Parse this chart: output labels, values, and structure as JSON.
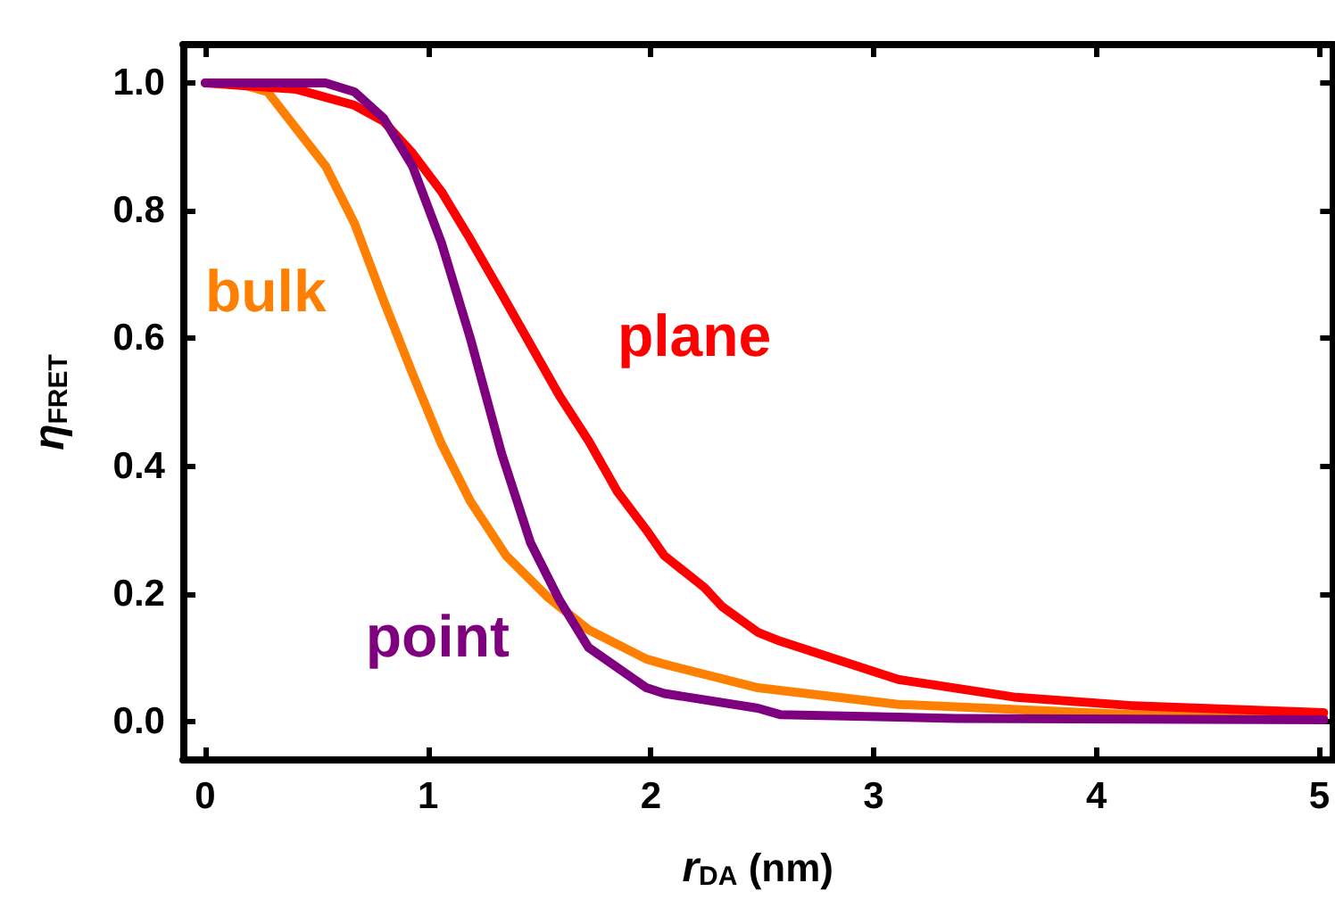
{
  "chart_data": {
    "type": "line",
    "xlabel": "r$_{DA}$ (nm)",
    "ylabel": "η$_{FRET}$",
    "xlim": [
      -0.1,
      5.06
    ],
    "ylim": [
      -0.06,
      1.06
    ],
    "xticks": [
      0,
      1,
      2,
      3,
      4,
      5
    ],
    "yticks": [
      {
        "value": 0,
        "label": "0.0"
      },
      {
        "value": 0.2,
        "label": "0.2"
      },
      {
        "value": 0.4,
        "label": "0.4"
      },
      {
        "value": 0.6,
        "label": "0.6"
      },
      {
        "value": 0.8,
        "label": "0.8"
      },
      {
        "value": 1,
        "label": "1.0"
      }
    ],
    "grid": false,
    "legend": false,
    "marker": "none",
    "line_style": "solid",
    "series": [
      {
        "name": "bulk",
        "color": "#ff8000",
        "x": [
          0,
          0.14,
          0.28,
          0.54,
          0.67,
          0.8,
          0.93,
          1.06,
          1.19,
          1.35,
          1.54,
          1.72,
          1.98,
          2.06,
          2.48,
          2.58,
          3.11,
          4.16,
          5.02
        ],
        "values": [
          1,
          1,
          0.986,
          0.87,
          0.78,
          0.66,
          0.545,
          0.435,
          0.345,
          0.26,
          0.194,
          0.144,
          0.098,
          0.09,
          0.053,
          0.049,
          0.027,
          0.011,
          0.006
        ]
      },
      {
        "name": "plane",
        "color": "#ff0000",
        "x": [
          0,
          0.41,
          0.67,
          0.8,
          0.93,
          1.06,
          1.19,
          1.33,
          1.46,
          1.59,
          1.72,
          1.85,
          1.98,
          2.06,
          2.24,
          2.32,
          2.48,
          2.58,
          3.11,
          3.64,
          4.16,
          5.02
        ],
        "values": [
          1,
          0.99,
          0.965,
          0.94,
          0.89,
          0.83,
          0.755,
          0.67,
          0.59,
          0.51,
          0.44,
          0.36,
          0.3,
          0.26,
          0.21,
          0.18,
          0.14,
          0.126,
          0.066,
          0.038,
          0.025,
          0.014
        ]
      },
      {
        "name": "point",
        "color": "#7f007f",
        "x": [
          0,
          0.54,
          0.67,
          0.8,
          0.93,
          1.06,
          1.19,
          1.33,
          1.46,
          1.59,
          1.72,
          1.98,
          2.06,
          2.48,
          2.58,
          3.37,
          5.02
        ],
        "values": [
          1,
          1,
          0.986,
          0.945,
          0.87,
          0.75,
          0.6,
          0.42,
          0.28,
          0.19,
          0.116,
          0.053,
          0.044,
          0.021,
          0.011,
          0.005,
          0.003
        ]
      }
    ]
  }
}
